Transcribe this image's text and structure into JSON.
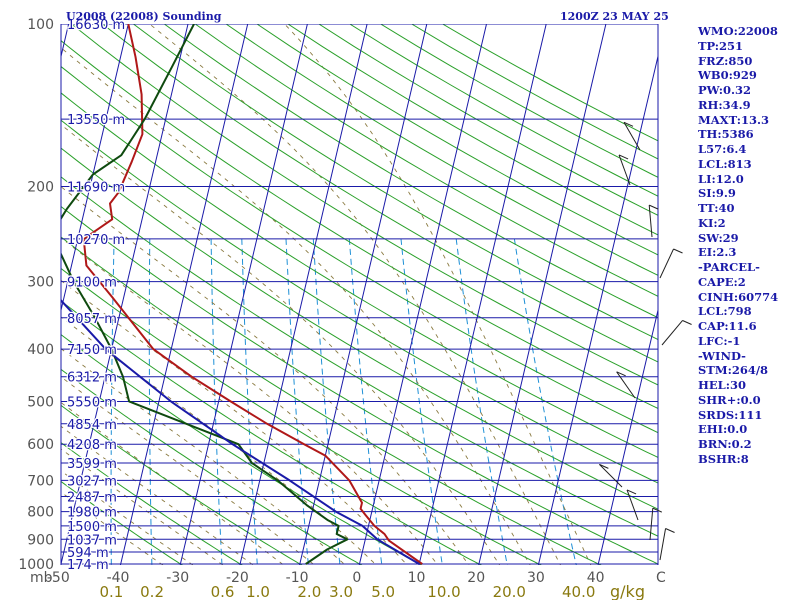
{
  "header": {
    "title": "U2008 (22008) Sounding",
    "valid_time": "1200Z 23 MAY 25"
  },
  "axes": {
    "pressure_unit": "mb",
    "mixing_unit": "g/kg",
    "temp_unit": "C"
  },
  "chart_data": {
    "type": "line",
    "title": "U2008 (22008) Sounding",
    "subtitle": "1200Z 23 MAY 25",
    "pressure_ticks": [
      100,
      200,
      300,
      400,
      500,
      600,
      700,
      800,
      900,
      1000
    ],
    "pressure_ylim": [
      100,
      1050
    ],
    "y_scale": "log",
    "temperature_ticks": [
      -50,
      -40,
      -30,
      -20,
      -10,
      0,
      10,
      20,
      30,
      40
    ],
    "temperature_tick_labels": [
      "-50",
      "-40",
      "-30",
      "-20",
      "-10",
      "0",
      "10",
      "20",
      "30",
      "40"
    ],
    "skewed_isotherms": true,
    "mixing_ratio_ticks": [
      "0.1",
      "0.2",
      "0.6",
      "1.0",
      "2.0",
      "3.0",
      "5.0",
      "10.0",
      "20.0",
      "40.0"
    ],
    "height_labels": [
      {
        "p": 100,
        "label": "16630 m"
      },
      {
        "p": 150,
        "label": "13550 m"
      },
      {
        "p": 200,
        "label": "11690 m"
      },
      {
        "p": 250,
        "label": "10270 m"
      },
      {
        "p": 300,
        "label": "9100 m"
      },
      {
        "p": 350,
        "label": "8057 m"
      },
      {
        "p": 400,
        "label": "7150 m"
      },
      {
        "p": 450,
        "label": "6312 m"
      },
      {
        "p": 500,
        "label": "5550 m"
      },
      {
        "p": 550,
        "label": "4854 m"
      },
      {
        "p": 600,
        "label": "4208 m"
      },
      {
        "p": 650,
        "label": "3599 m"
      },
      {
        "p": 700,
        "label": "3027 m"
      },
      {
        "p": 750,
        "label": "2487 m"
      },
      {
        "p": 800,
        "label": "1980 m"
      },
      {
        "p": 850,
        "label": "1500 m"
      },
      {
        "p": 900,
        "label": "1037 m"
      },
      {
        "p": 950,
        "label": "594 m"
      },
      {
        "p": 1000,
        "label": "174 m"
      }
    ],
    "series": [
      {
        "name": "Temperature",
        "color": "#b01818",
        "points": [
          [
            100,
            -60
          ],
          [
            115,
            -57.5
          ],
          [
            135,
            -55
          ],
          [
            160,
            -53.3
          ],
          [
            180,
            -54
          ],
          [
            205,
            -55
          ],
          [
            215,
            -56
          ],
          [
            230,
            -55
          ],
          [
            250,
            -59
          ],
          [
            280,
            -57.5
          ],
          [
            320,
            -52
          ],
          [
            400,
            -43
          ],
          [
            450,
            -35.5
          ],
          [
            500,
            -28
          ],
          [
            550,
            -21
          ],
          [
            600,
            -14
          ],
          [
            630,
            -10
          ],
          [
            700,
            -5
          ],
          [
            770,
            -2
          ],
          [
            790,
            -2
          ],
          [
            810,
            -1
          ],
          [
            850,
            1
          ],
          [
            880,
            3
          ],
          [
            905,
            4
          ],
          [
            1000,
            10.5
          ]
        ]
      },
      {
        "name": "Dewpoint",
        "color": "#0f4a0f",
        "points": [
          [
            100,
            -49
          ],
          [
            120,
            -51
          ],
          [
            150,
            -53.5
          ],
          [
            175,
            -56
          ],
          [
            190,
            -60
          ],
          [
            220,
            -63
          ],
          [
            235,
            -64
          ],
          [
            250,
            -64
          ],
          [
            300,
            -59
          ],
          [
            350,
            -54
          ],
          [
            400,
            -50
          ],
          [
            450,
            -47
          ],
          [
            500,
            -45
          ],
          [
            600,
            -25
          ],
          [
            650,
            -22
          ],
          [
            700,
            -17
          ],
          [
            780,
            -11
          ],
          [
            830,
            -7
          ],
          [
            850,
            -5
          ],
          [
            880,
            -5
          ],
          [
            900,
            -3
          ],
          [
            940,
            -6
          ],
          [
            1000,
            -9
          ]
        ]
      },
      {
        "name": "Parcel",
        "color": "#1a1aa8",
        "points": [
          [
            100,
            -84
          ],
          [
            200,
            -75
          ],
          [
            300,
            -64
          ],
          [
            400,
            -51
          ],
          [
            500,
            -38
          ],
          [
            600,
            -26
          ],
          [
            700,
            -15
          ],
          [
            800,
            -6
          ],
          [
            850,
            -1
          ],
          [
            900,
            2
          ],
          [
            1000,
            10
          ]
        ]
      }
    ]
  },
  "indices": [
    "WMO:22008",
    "TP:251",
    "FRZ:850",
    "WB0:929",
    "PW:0.32",
    "RH:34.9",
    "MAXT:13.3",
    "TH:5386",
    "L57:6.4",
    "LCL:813",
    "LI:12.0",
    "SI:9.9",
    "TT:40",
    "KI:2",
    "SW:29",
    "EI:2.3",
    "-PARCEL-",
    "CAPE:2",
    "CINH:60774",
    "LCL:798",
    "CAP:11.6",
    "LFC:-1",
    "-WIND-",
    "STM:264/8",
    "HEL:30",
    "SHR+:0.0",
    "SRDS:111",
    "EHI:0.0",
    "BRN:0.2",
    "BSHR:8"
  ],
  "colors": {
    "isobar": "#1a1aa8",
    "isotherm": "#1a1aa8",
    "dry_adiabat": "#2aa02a",
    "moist_adiabat": "#8a7a40",
    "mixing_ratio": "#1e90d6",
    "temperature": "#b01818",
    "dewpoint": "#0f4a0f",
    "parcel": "#1a1aa8"
  }
}
